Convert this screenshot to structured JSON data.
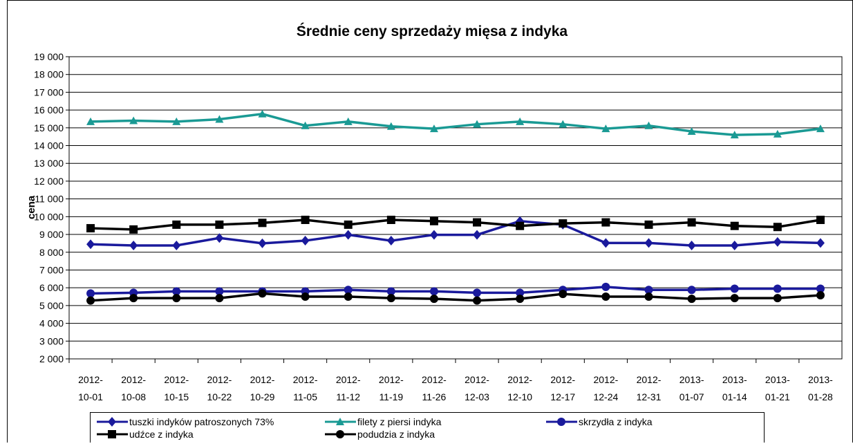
{
  "chart_data": {
    "type": "line",
    "title": "Średnie ceny sprzedaży mięsa z indyka",
    "y_label": "cena",
    "categories": [
      "2012-10-01",
      "2012-10-08",
      "2012-10-15",
      "2012-10-22",
      "2012-10-29",
      "2012-11-05",
      "2012-11-12",
      "2012-11-19",
      "2012-11-26",
      "2012-12-03",
      "2012-12-10",
      "2012-12-17",
      "2012-12-24",
      "2012-12-31",
      "2013-01-07",
      "2013-01-14",
      "2013-01-21",
      "2013-01-28"
    ],
    "ylim": [
      2000,
      19000
    ],
    "yticks": [
      {
        "value": 2000,
        "label": "2 000"
      },
      {
        "value": 3000,
        "label": "3 000"
      },
      {
        "value": 4000,
        "label": "4 000"
      },
      {
        "value": 5000,
        "label": "5 000"
      },
      {
        "value": 6000,
        "label": "6 000"
      },
      {
        "value": 7000,
        "label": "7 000"
      },
      {
        "value": 8000,
        "label": "8 000"
      },
      {
        "value": 9000,
        "label": "9 000"
      },
      {
        "value": 10000,
        "label": "10 000"
      },
      {
        "value": 11000,
        "label": "11 000"
      },
      {
        "value": 12000,
        "label": "12 000"
      },
      {
        "value": 13000,
        "label": "13 000"
      },
      {
        "value": 14000,
        "label": "14 000"
      },
      {
        "value": 15000,
        "label": "15 000"
      },
      {
        "value": 16000,
        "label": "16 000"
      },
      {
        "value": 17000,
        "label": "17 000"
      },
      {
        "value": 18000,
        "label": "18 000"
      },
      {
        "value": 19000,
        "label": "19 000"
      }
    ],
    "grid": true,
    "series": [
      {
        "name": "tuszki indyków  patroszonych 73%",
        "color": "#1a1a9c",
        "marker": "diamond",
        "values": [
          8450,
          8380,
          8380,
          8800,
          8500,
          8650,
          8980,
          8650,
          8980,
          8980,
          9750,
          9550,
          8520,
          8520,
          8380,
          8380,
          8580,
          8520
        ]
      },
      {
        "name": "filety z piersi indyka",
        "color": "#1a9a94",
        "marker": "triangle",
        "values": [
          15350,
          15400,
          15350,
          15480,
          15780,
          15120,
          15350,
          15080,
          14950,
          15200,
          15350,
          15200,
          14950,
          15120,
          14800,
          14600,
          14650,
          14950
        ]
      },
      {
        "name": "skrzydła z indyka",
        "color": "#1a1a9c",
        "marker": "circle",
        "values": [
          5680,
          5720,
          5800,
          5800,
          5800,
          5800,
          5880,
          5800,
          5800,
          5720,
          5720,
          5880,
          6050,
          5880,
          5880,
          5950,
          5950,
          5950
        ]
      },
      {
        "name": "udźce z indyka",
        "color": "#000000",
        "marker": "square",
        "values": [
          9350,
          9280,
          9550,
          9550,
          9650,
          9820,
          9550,
          9820,
          9750,
          9680,
          9480,
          9620,
          9680,
          9550,
          9680,
          9480,
          9420,
          9820
        ]
      },
      {
        "name": "podudzia z indyka",
        "color": "#000000",
        "marker": "circle",
        "values": [
          5280,
          5420,
          5420,
          5420,
          5680,
          5500,
          5500,
          5420,
          5380,
          5280,
          5380,
          5650,
          5500,
          5500,
          5380,
          5420,
          5420,
          5580
        ]
      }
    ]
  }
}
